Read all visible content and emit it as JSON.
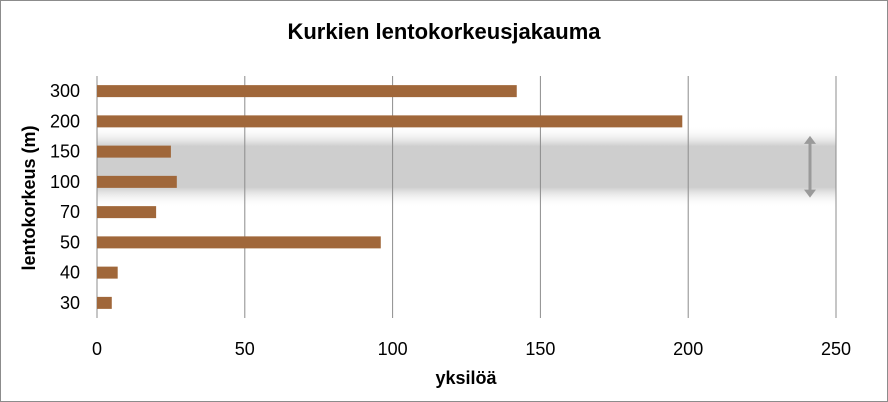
{
  "chart_data": {
    "type": "bar",
    "orientation": "horizontal",
    "title": "Kurkien lentokorkeusjakauma",
    "xlabel": "yksilöä",
    "ylabel": "lentokorkeus (m)",
    "categories": [
      "300",
      "200",
      "150",
      "100",
      "70",
      "50",
      "40",
      "30"
    ],
    "values": [
      142,
      198,
      25,
      27,
      20,
      96,
      7,
      5
    ],
    "xlim": [
      0,
      250
    ],
    "xticks": [
      "0",
      "50",
      "100",
      "150",
      "200",
      "250"
    ],
    "grid": "vertical",
    "legend": "none",
    "bar_color": "#a0673a",
    "band_color": "#c0c0c0",
    "band_categories": [
      "150",
      "100"
    ],
    "arrow_color": "#9a9a9a"
  }
}
